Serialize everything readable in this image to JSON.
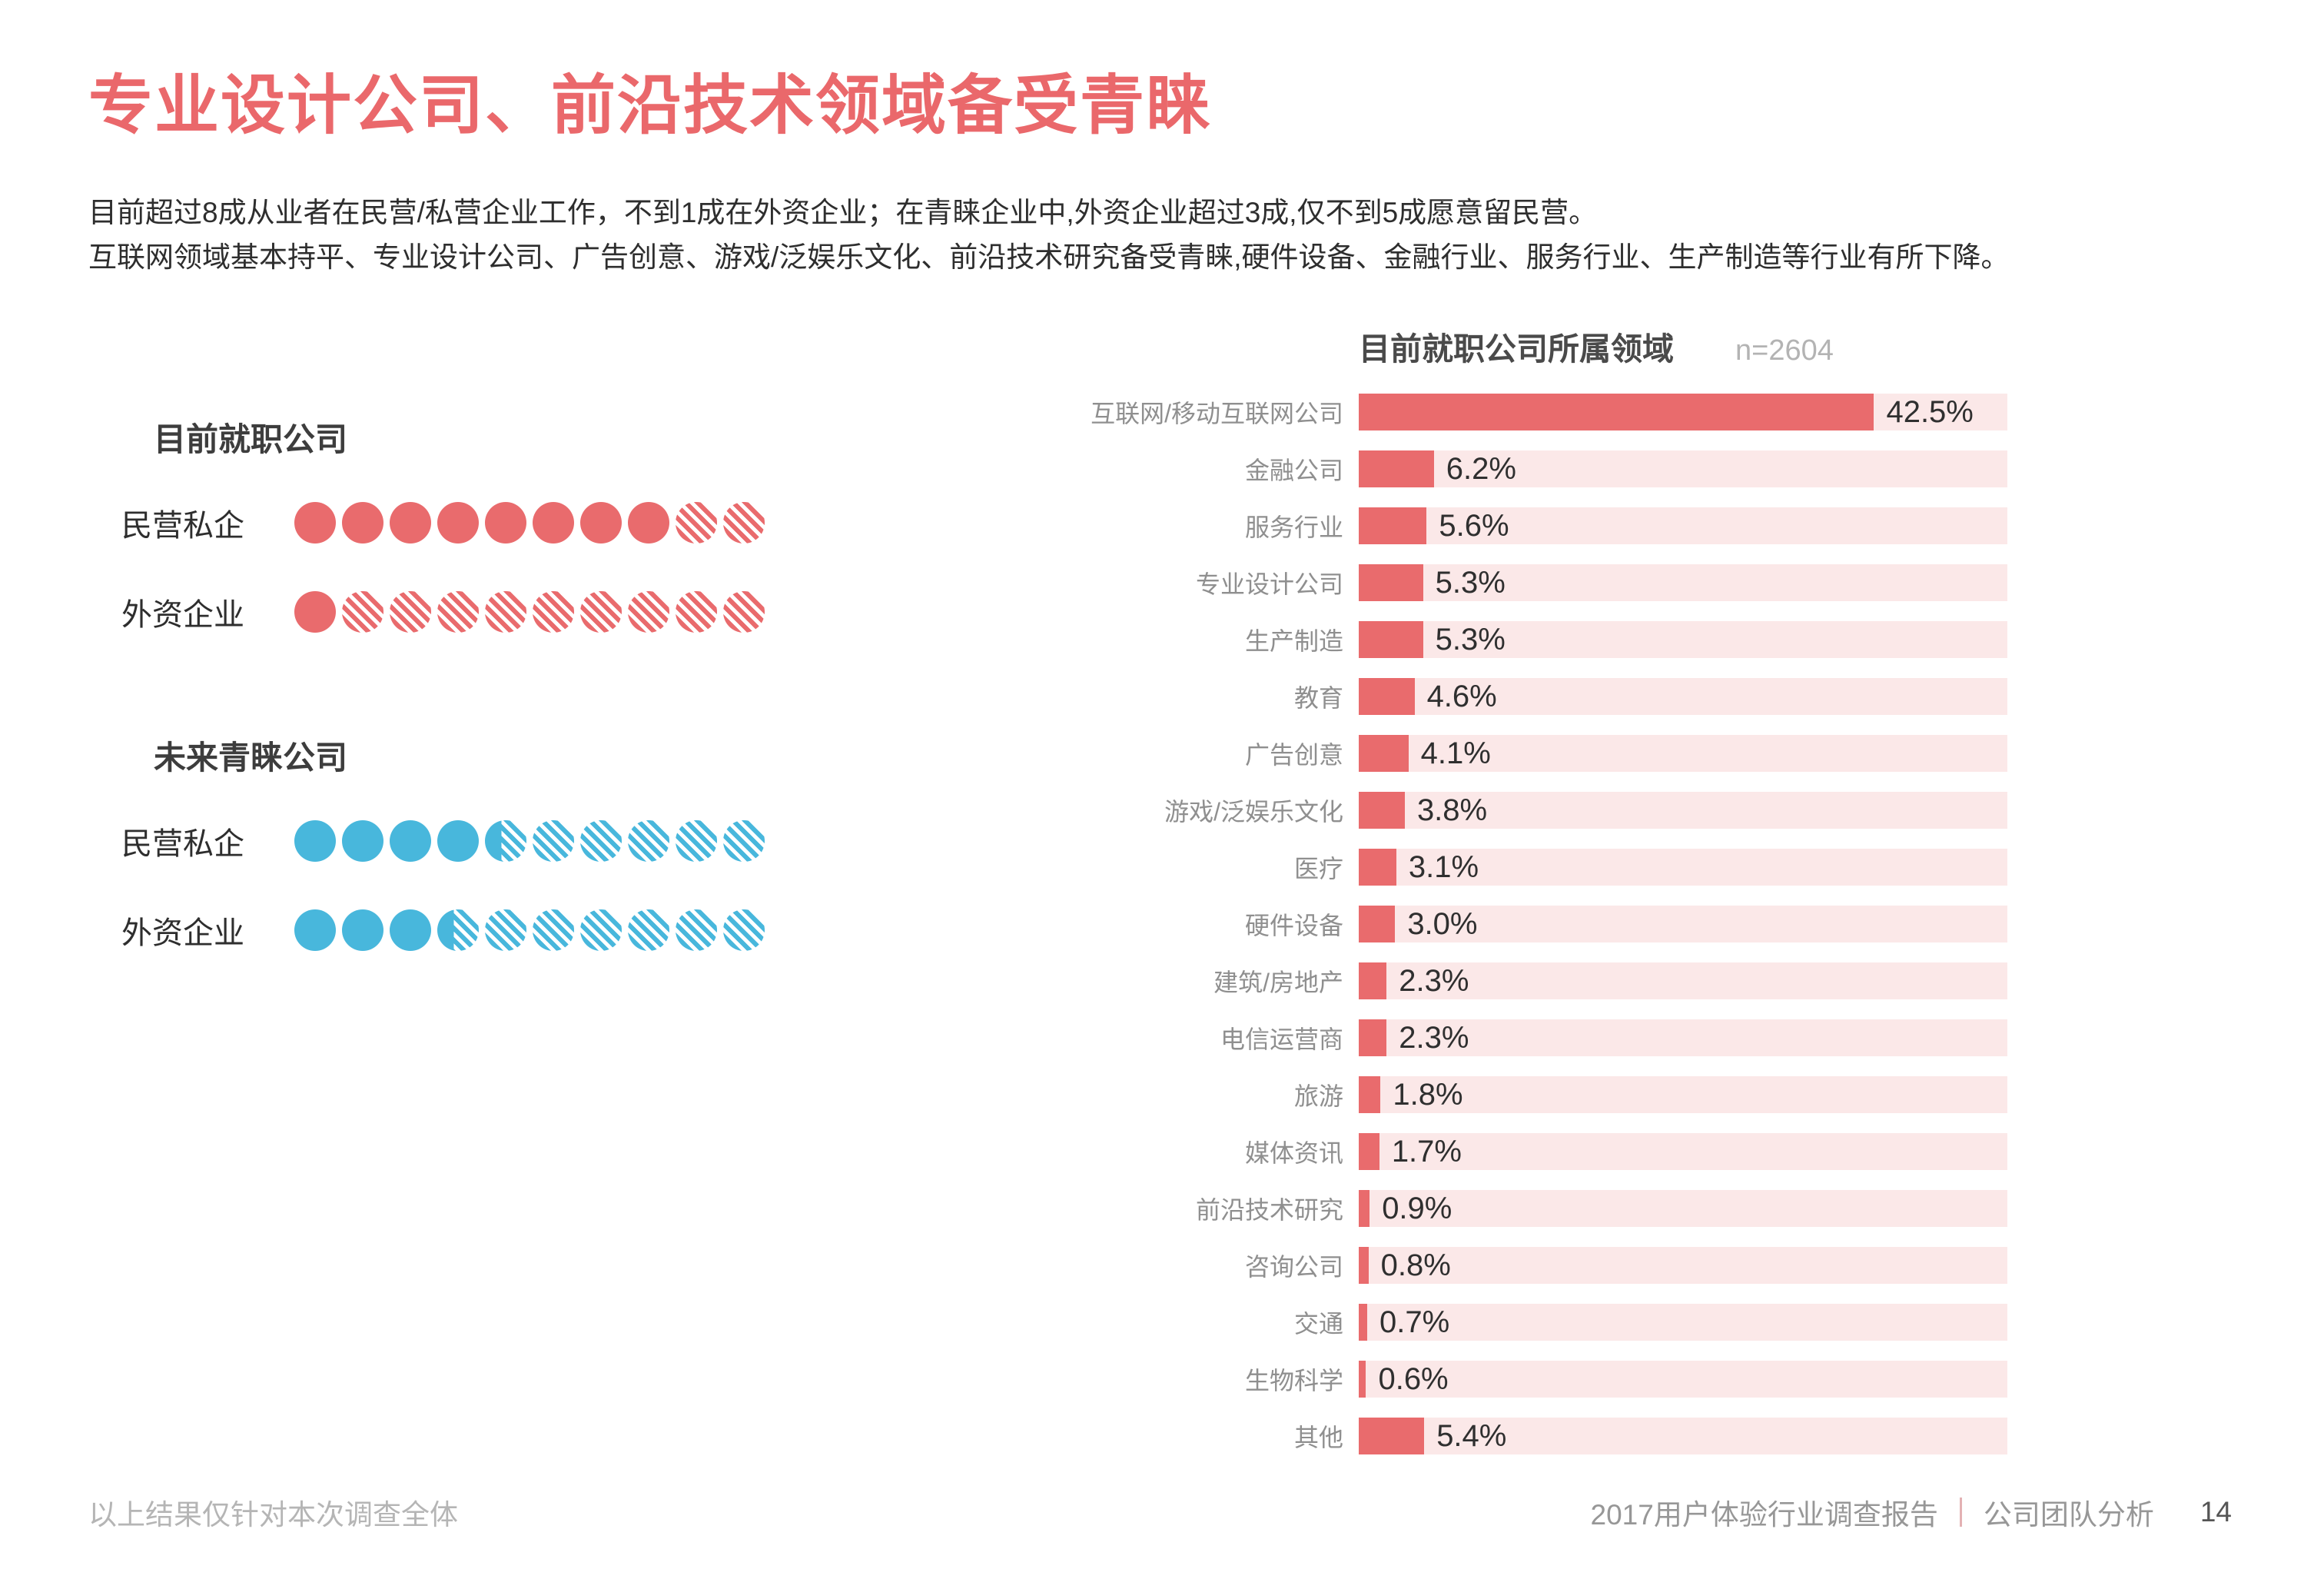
{
  "page": {
    "title": "专业设计公司、前沿技术领域备受青睐",
    "intro_line1": "目前超过8成从业者在民营/私营企业工作，不到1成在外资企业；在青睐企业中,外资企业超过3成,仅不到5成愿意留民营。",
    "intro_line2": "互联网领域基本持平、专业设计公司、广告创意、游戏/泛娱乐文化、前沿技术研究备受青睐,硬件设备、金融行业、服务行业、生产制造等行业有所下降。",
    "footer_note": "以上结果仅针对本次调查全体",
    "footer_report": "2017用户体验行业调查报告",
    "footer_section": "公司团队分析",
    "page_number": "14"
  },
  "colors": {
    "accent_red": "#E96B6D",
    "title_red": "#EA686B",
    "track_pink": "#FBE8E8",
    "accent_blue": "#48B7DC",
    "text_dark": "#2e2e2e",
    "text_gray": "#8f8f8f"
  },
  "chart_data": [
    {
      "type": "pictogram-dots",
      "title": "目前就职公司",
      "color": "#E96B6D",
      "unit_total": 10,
      "rows": [
        {
          "label": "民营私企",
          "solid": 8,
          "partial": 0
        },
        {
          "label": "外资企业",
          "solid": 1,
          "partial": 0
        }
      ]
    },
    {
      "type": "pictogram-dots",
      "title": "未来青睐公司",
      "color": "#48B7DC",
      "unit_total": 10,
      "rows": [
        {
          "label": "民营私企",
          "solid": 4,
          "partial": 0.4
        },
        {
          "label": "外资企业",
          "solid": 3,
          "partial": 0.4
        }
      ]
    },
    {
      "type": "bar",
      "orientation": "horizontal",
      "title": "目前就职公司所属领域",
      "sample_label": "n=2604",
      "unit": "%",
      "xlim": [
        0,
        53.5
      ],
      "legend": null,
      "grid": false,
      "categories": [
        "互联网/移动互联网公司",
        "金融公司",
        "服务行业",
        "专业设计公司",
        "生产制造",
        "教育",
        "广告创意",
        "游戏/泛娱乐文化",
        "医疗",
        "硬件设备",
        "建筑/房地产",
        "电信运营商",
        "旅游",
        "媒体资讯",
        "前沿技术研究",
        "咨询公司",
        "交通",
        "生物科学",
        "其他"
      ],
      "values": [
        42.5,
        6.2,
        5.6,
        5.3,
        5.3,
        4.6,
        4.1,
        3.8,
        3.1,
        3.0,
        2.3,
        2.3,
        1.8,
        1.7,
        0.9,
        0.8,
        0.7,
        0.6,
        5.4
      ]
    }
  ]
}
